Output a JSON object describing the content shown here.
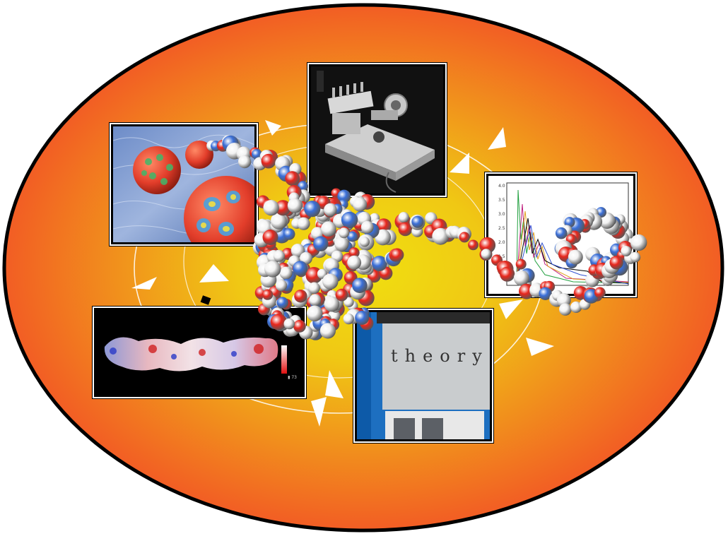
{
  "colors": {
    "ellipse_inner": "#f0e010",
    "ellipse_outer": "#f25d24",
    "outline": "#000000",
    "cycle_line": "#ffffff",
    "atom_red": "#e8261c",
    "atom_blue": "#3a6fd8",
    "atom_white": "#f2f2f2"
  },
  "panels": {
    "spheres": {
      "subject": "colored spheres on water"
    },
    "instrument": {
      "subject": "laboratory instrument"
    },
    "plot": {
      "subject": "spectra plot"
    },
    "surface": {
      "subject": "molecular surface",
      "scale_label": "▮ 73"
    },
    "theory": {
      "sign_text": "theory"
    }
  },
  "arrows": {
    "count": 12,
    "direction": "clockwise"
  }
}
